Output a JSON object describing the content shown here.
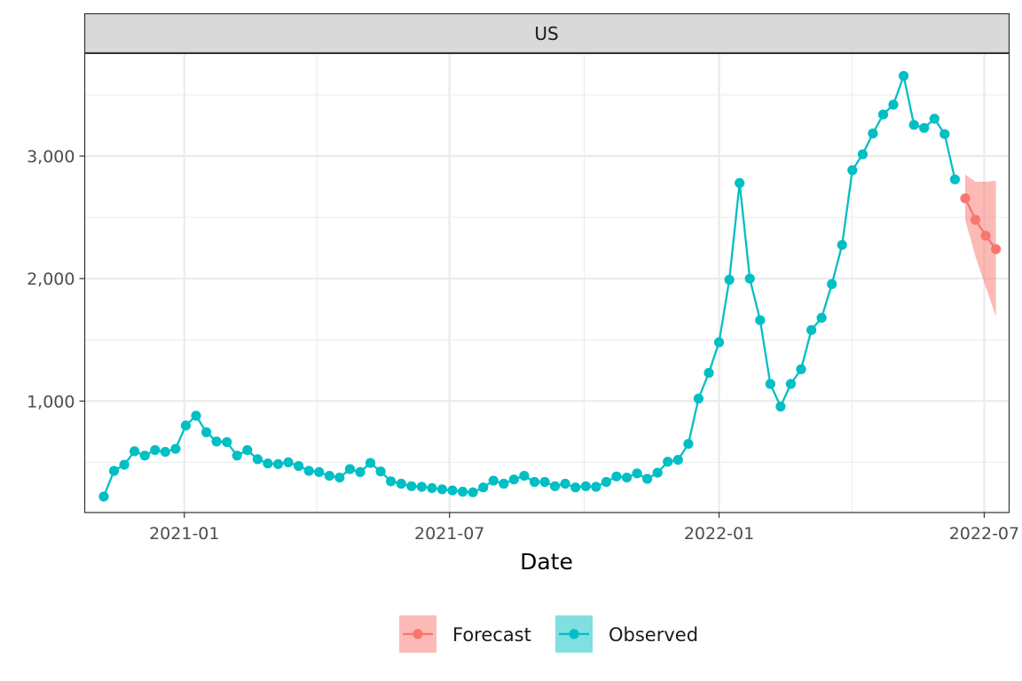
{
  "chart_data": {
    "type": "line",
    "facet": "US",
    "xlabel": "Date",
    "ylabel": "",
    "x_ticks": [
      "2021-01",
      "2021-07",
      "2022-01",
      "2022-07"
    ],
    "y_ticks": [
      1000,
      2000,
      3000
    ],
    "y_tick_labels": [
      "1,000",
      "2,000",
      "3,000"
    ],
    "xlim": [
      "2020-10-25",
      "2022-07-18"
    ],
    "ylim": [
      90,
      3840
    ],
    "grid": true,
    "legend_position": "bottom",
    "series": [
      {
        "name": "Observed",
        "color": "#00BFC4",
        "points": [
          [
            "2020-11-07",
            220
          ],
          [
            "2020-11-14",
            430
          ],
          [
            "2020-11-21",
            480
          ],
          [
            "2020-11-28",
            590
          ],
          [
            "2020-12-05",
            555
          ],
          [
            "2020-12-12",
            600
          ],
          [
            "2020-12-19",
            585
          ],
          [
            "2020-12-26",
            610
          ],
          [
            "2021-01-02",
            800
          ],
          [
            "2021-01-09",
            880
          ],
          [
            "2021-01-16",
            745
          ],
          [
            "2021-01-23",
            670
          ],
          [
            "2021-01-30",
            665
          ],
          [
            "2021-02-06",
            555
          ],
          [
            "2021-02-13",
            600
          ],
          [
            "2021-02-20",
            525
          ],
          [
            "2021-02-27",
            490
          ],
          [
            "2021-03-06",
            485
          ],
          [
            "2021-03-13",
            500
          ],
          [
            "2021-03-20",
            470
          ],
          [
            "2021-03-27",
            430
          ],
          [
            "2021-04-03",
            420
          ],
          [
            "2021-04-10",
            390
          ],
          [
            "2021-04-17",
            375
          ],
          [
            "2021-04-24",
            445
          ],
          [
            "2021-05-01",
            420
          ],
          [
            "2021-05-08",
            495
          ],
          [
            "2021-05-15",
            425
          ],
          [
            "2021-05-22",
            345
          ],
          [
            "2021-05-29",
            325
          ],
          [
            "2021-06-05",
            305
          ],
          [
            "2021-06-12",
            300
          ],
          [
            "2021-06-19",
            290
          ],
          [
            "2021-06-26",
            280
          ],
          [
            "2021-07-03",
            270
          ],
          [
            "2021-07-10",
            260
          ],
          [
            "2021-07-17",
            255
          ],
          [
            "2021-07-24",
            295
          ],
          [
            "2021-07-31",
            350
          ],
          [
            "2021-08-07",
            325
          ],
          [
            "2021-08-14",
            360
          ],
          [
            "2021-08-21",
            390
          ],
          [
            "2021-08-28",
            340
          ],
          [
            "2021-09-04",
            340
          ],
          [
            "2021-09-11",
            305
          ],
          [
            "2021-09-18",
            325
          ],
          [
            "2021-09-25",
            295
          ],
          [
            "2021-10-02",
            305
          ],
          [
            "2021-10-09",
            300
          ],
          [
            "2021-10-16",
            340
          ],
          [
            "2021-10-23",
            385
          ],
          [
            "2021-10-30",
            375
          ],
          [
            "2021-11-06",
            410
          ],
          [
            "2021-11-13",
            365
          ],
          [
            "2021-11-20",
            415
          ],
          [
            "2021-11-27",
            505
          ],
          [
            "2021-12-04",
            520
          ],
          [
            "2021-12-11",
            650
          ],
          [
            "2021-12-18",
            1020
          ],
          [
            "2021-12-25",
            1230
          ],
          [
            "2022-01-01",
            1480
          ],
          [
            "2022-01-08",
            1990
          ],
          [
            "2022-01-15",
            2780
          ],
          [
            "2022-01-22",
            2000
          ],
          [
            "2022-01-29",
            1660
          ],
          [
            "2022-02-05",
            1140
          ],
          [
            "2022-02-12",
            955
          ],
          [
            "2022-02-19",
            1140
          ],
          [
            "2022-02-26",
            1260
          ],
          [
            "2022-03-05",
            1580
          ],
          [
            "2022-03-12",
            1680
          ],
          [
            "2022-03-19",
            1955
          ],
          [
            "2022-03-26",
            2275
          ],
          [
            "2022-04-02",
            2885
          ],
          [
            "2022-04-09",
            3015
          ],
          [
            "2022-04-16",
            3185
          ],
          [
            "2022-04-23",
            3340
          ],
          [
            "2022-04-30",
            3420
          ],
          [
            "2022-05-07",
            3655
          ],
          [
            "2022-05-14",
            3255
          ],
          [
            "2022-05-21",
            3230
          ],
          [
            "2022-05-28",
            3305
          ],
          [
            "2022-06-04",
            3180
          ],
          [
            "2022-06-11",
            2810
          ]
        ]
      },
      {
        "name": "Forecast",
        "color": "#F8766D",
        "points": [
          [
            "2022-06-18",
            2655
          ],
          [
            "2022-06-25",
            2480
          ],
          [
            "2022-07-02",
            2350
          ],
          [
            "2022-07-09",
            2240
          ]
        ],
        "interval_lower": [
          2480,
          2180,
          1930,
          1690
        ],
        "interval_upper": [
          2850,
          2790,
          2790,
          2800
        ]
      }
    ]
  }
}
